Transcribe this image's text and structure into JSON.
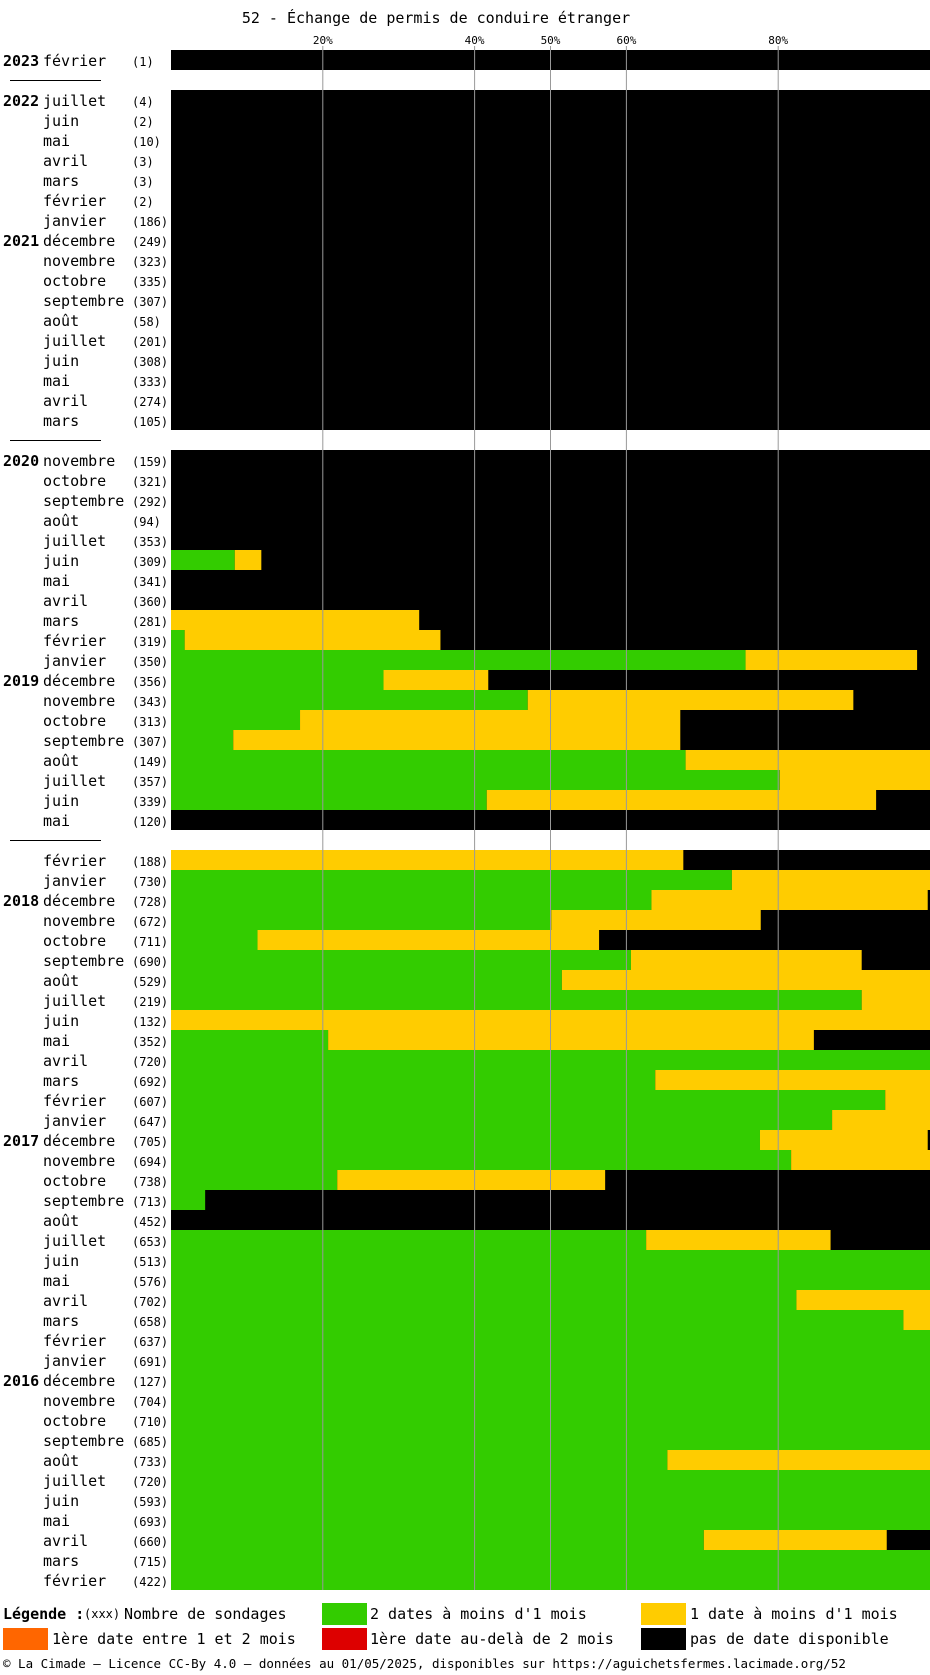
{
  "chart_data": {
    "type": "bar",
    "orientation": "horizontal",
    "stacked": true,
    "title": "52 - Échange de permis de conduire étranger",
    "x_ticks": [
      "20%",
      "40%",
      "50%",
      "60%",
      "80%"
    ],
    "x_tick_values": [
      20,
      40,
      50,
      60,
      80
    ],
    "xlim": [
      0,
      100
    ],
    "colors": {
      "green": "#33cc00",
      "yellow": "#ffcc00",
      "orange": "#ff6600",
      "red": "#dd0000",
      "black": "#000000"
    },
    "groups": [
      {
        "rows": [
          {
            "year": "2023",
            "month": "février",
            "count": "(1)",
            "green": 0,
            "yellow": 0
          }
        ]
      },
      {
        "rows": [
          {
            "year": "2022",
            "month": "juillet",
            "count": "(4)",
            "green": 0,
            "yellow": 0
          },
          {
            "year": "",
            "month": "juin",
            "count": "(2)",
            "green": 0,
            "yellow": 0
          },
          {
            "year": "",
            "month": "mai",
            "count": "(10)",
            "green": 0,
            "yellow": 0
          },
          {
            "year": "",
            "month": "avril",
            "count": "(3)",
            "green": 0,
            "yellow": 0
          },
          {
            "year": "",
            "month": "mars",
            "count": "(3)",
            "green": 0,
            "yellow": 0
          },
          {
            "year": "",
            "month": "février",
            "count": "(2)",
            "green": 0,
            "yellow": 0
          },
          {
            "year": "",
            "month": "janvier",
            "count": "(186)",
            "green": 0,
            "yellow": 0
          },
          {
            "year": "2021",
            "month": "décembre",
            "count": "(249)",
            "green": 0,
            "yellow": 0
          },
          {
            "year": "",
            "month": "novembre",
            "count": "(323)",
            "green": 0,
            "yellow": 0
          },
          {
            "year": "",
            "month": "octobre",
            "count": "(335)",
            "green": 0,
            "yellow": 0
          },
          {
            "year": "",
            "month": "septembre",
            "count": "(307)",
            "green": 0,
            "yellow": 0
          },
          {
            "year": "",
            "month": "août",
            "count": "(58)",
            "green": 0,
            "yellow": 0
          },
          {
            "year": "",
            "month": "juillet",
            "count": "(201)",
            "green": 0,
            "yellow": 0
          },
          {
            "year": "",
            "month": "juin",
            "count": "(308)",
            "green": 0,
            "yellow": 0
          },
          {
            "year": "",
            "month": "mai",
            "count": "(333)",
            "green": 0,
            "yellow": 0
          },
          {
            "year": "",
            "month": "avril",
            "count": "(274)",
            "green": 0,
            "yellow": 0
          },
          {
            "year": "",
            "month": "mars",
            "count": "(105)",
            "green": 0,
            "yellow": 0
          }
        ]
      },
      {
        "rows": [
          {
            "year": "2020",
            "month": "novembre",
            "count": "(159)",
            "green": 0,
            "yellow": 0
          },
          {
            "year": "",
            "month": "octobre",
            "count": "(321)",
            "green": 0,
            "yellow": 0
          },
          {
            "year": "",
            "month": "septembre",
            "count": "(292)",
            "green": 0,
            "yellow": 0
          },
          {
            "year": "",
            "month": "août",
            "count": "(94)",
            "green": 0,
            "yellow": 0
          },
          {
            "year": "",
            "month": "juillet",
            "count": "(353)",
            "green": 0,
            "yellow": 0
          },
          {
            "year": "",
            "month": "juin",
            "count": "(309)",
            "green": 8.4,
            "yellow": 3.5
          },
          {
            "year": "",
            "month": "mai",
            "count": "(341)",
            "green": 0,
            "yellow": 0
          },
          {
            "year": "",
            "month": "avril",
            "count": "(360)",
            "green": 0,
            "yellow": 0
          },
          {
            "year": "",
            "month": "mars",
            "count": "(281)",
            "green": 0,
            "yellow": 32.7
          },
          {
            "year": "",
            "month": "février",
            "count": "(319)",
            "green": 1.8,
            "yellow": 33.7
          },
          {
            "year": "",
            "month": "janvier",
            "count": "(350)",
            "green": 75.7,
            "yellow": 22.6
          },
          {
            "year": "2019",
            "month": "décembre",
            "count": "(356)",
            "green": 28.0,
            "yellow": 13.8
          },
          {
            "year": "",
            "month": "novembre",
            "count": "(343)",
            "green": 47.0,
            "yellow": 42.9
          },
          {
            "year": "",
            "month": "octobre",
            "count": "(313)",
            "green": 17.0,
            "yellow": 50.1
          },
          {
            "year": "",
            "month": "septembre",
            "count": "(307)",
            "green": 8.2,
            "yellow": 58.9
          },
          {
            "year": "",
            "month": "août",
            "count": "(149)",
            "green": 67.8,
            "yellow": 32.2
          },
          {
            "year": "",
            "month": "juillet",
            "count": "(357)",
            "green": 80.2,
            "yellow": 19.8
          },
          {
            "year": "",
            "month": "juin",
            "count": "(339)",
            "green": 41.6,
            "yellow": 51.3
          },
          {
            "year": "",
            "month": "mai",
            "count": "(120)",
            "green": 0,
            "yellow": 0
          }
        ]
      },
      {
        "rows": [
          {
            "year": "",
            "month": "février",
            "count": "(188)",
            "green": 0,
            "yellow": 67.5
          },
          {
            "year": "",
            "month": "janvier",
            "count": "(730)",
            "green": 73.9,
            "yellow": 26.1
          },
          {
            "year": "2018",
            "month": "décembre",
            "count": "(728)",
            "green": 63.3,
            "yellow": 36.4
          },
          {
            "year": "",
            "month": "novembre",
            "count": "(672)",
            "green": 50.1,
            "yellow": 27.6
          },
          {
            "year": "",
            "month": "octobre",
            "count": "(711)",
            "green": 11.4,
            "yellow": 45.0
          },
          {
            "year": "",
            "month": "septembre",
            "count": "(690)",
            "green": 60.6,
            "yellow": 30.4
          },
          {
            "year": "",
            "month": "août",
            "count": "(529)",
            "green": 51.5,
            "yellow": 48.5
          },
          {
            "year": "",
            "month": "juillet",
            "count": "(219)",
            "green": 91.0,
            "yellow": 9.0
          },
          {
            "year": "",
            "month": "juin",
            "count": "(132)",
            "green": 0,
            "yellow": 100
          },
          {
            "year": "",
            "month": "mai",
            "count": "(352)",
            "green": 20.7,
            "yellow": 64.0
          },
          {
            "year": "",
            "month": "avril",
            "count": "(720)",
            "green": 100,
            "yellow": 0
          },
          {
            "year": "",
            "month": "mars",
            "count": "(692)",
            "green": 63.8,
            "yellow": 36.2
          },
          {
            "year": "",
            "month": "février",
            "count": "(607)",
            "green": 94.1,
            "yellow": 5.9
          },
          {
            "year": "",
            "month": "janvier",
            "count": "(647)",
            "green": 87.1,
            "yellow": 12.9
          },
          {
            "year": "2017",
            "month": "décembre",
            "count": "(705)",
            "green": 77.6,
            "yellow": 22.1
          },
          {
            "year": "",
            "month": "novembre",
            "count": "(694)",
            "green": 81.7,
            "yellow": 18.3
          },
          {
            "year": "",
            "month": "octobre",
            "count": "(738)",
            "green": 21.9,
            "yellow": 35.3
          },
          {
            "year": "",
            "month": "septembre",
            "count": "(713)",
            "green": 4.5,
            "yellow": 0
          },
          {
            "year": "",
            "month": "août",
            "count": "(452)",
            "green": 0,
            "yellow": 0
          },
          {
            "year": "",
            "month": "juillet",
            "count": "(653)",
            "green": 62.6,
            "yellow": 24.3
          },
          {
            "year": "",
            "month": "juin",
            "count": "(513)",
            "green": 100,
            "yellow": 0
          },
          {
            "year": "",
            "month": "mai",
            "count": "(576)",
            "green": 100,
            "yellow": 0
          },
          {
            "year": "",
            "month": "avril",
            "count": "(702)",
            "green": 82.4,
            "yellow": 17.6
          },
          {
            "year": "",
            "month": "mars",
            "count": "(658)",
            "green": 96.5,
            "yellow": 3.5
          },
          {
            "year": "",
            "month": "février",
            "count": "(637)",
            "green": 100,
            "yellow": 0
          },
          {
            "year": "",
            "month": "janvier",
            "count": "(691)",
            "green": 100,
            "yellow": 0
          },
          {
            "year": "2016",
            "month": "décembre",
            "count": "(127)",
            "green": 100,
            "yellow": 0
          },
          {
            "year": "",
            "month": "novembre",
            "count": "(704)",
            "green": 100,
            "yellow": 0
          },
          {
            "year": "",
            "month": "octobre",
            "count": "(710)",
            "green": 100,
            "yellow": 0
          },
          {
            "year": "",
            "month": "septembre",
            "count": "(685)",
            "green": 100,
            "yellow": 0
          },
          {
            "year": "",
            "month": "août",
            "count": "(733)",
            "green": 65.4,
            "yellow": 34.6
          },
          {
            "year": "",
            "month": "juillet",
            "count": "(720)",
            "green": 100,
            "yellow": 0
          },
          {
            "year": "",
            "month": "juin",
            "count": "(593)",
            "green": 100,
            "yellow": 0
          },
          {
            "year": "",
            "month": "mai",
            "count": "(693)",
            "green": 100,
            "yellow": 0
          },
          {
            "year": "",
            "month": "avril",
            "count": "(660)",
            "green": 70.2,
            "yellow": 24.1
          },
          {
            "year": "",
            "month": "mars",
            "count": "(715)",
            "green": 100,
            "yellow": 0
          },
          {
            "year": "",
            "month": "février",
            "count": "(422)",
            "green": 100,
            "yellow": 0
          }
        ]
      }
    ]
  },
  "legend": {
    "title": "Légende :",
    "count_marker": "(xxx)",
    "count_label": "Nombre de sondages",
    "items": [
      {
        "label": "2 dates à moins d'1 mois",
        "color": "#33cc00"
      },
      {
        "label": "1 date à moins d'1 mois",
        "color": "#ffcc00"
      },
      {
        "label": "1ère date entre 1 et 2 mois",
        "color": "#ff6600"
      },
      {
        "label": "1ère date au-delà de 2 mois",
        "color": "#dd0000"
      },
      {
        "label": "pas de date disponible",
        "color": "#000000"
      }
    ]
  },
  "footer": "© La Cimade — Licence CC-By 4.0 — données au 01/05/2025, disponibles sur https://aguichetsfermes.lacimade.org/52"
}
